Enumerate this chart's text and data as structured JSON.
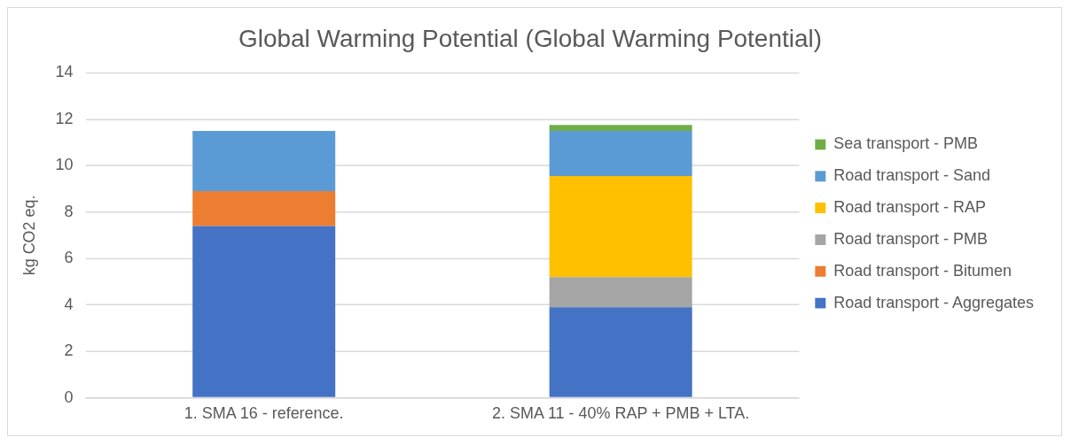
{
  "chart_data": {
    "type": "bar",
    "title": "Global Warming Potential (Global Warming Potential)",
    "ylabel": "kg CO2 eq.",
    "categories": [
      "1. SMA 16 - reference.",
      "2. SMA 11 - 40% RAP + PMB + LTA."
    ],
    "stacked": true,
    "ylim": [
      0,
      14
    ],
    "yticks": [
      0,
      2,
      4,
      6,
      8,
      10,
      12,
      14
    ],
    "grid": "y",
    "legend": "right",
    "series": [
      {
        "name": "Road transport - Aggregates",
        "color": "#4472c4",
        "values": [
          7.4,
          3.9
        ]
      },
      {
        "name": "Road transport - Bitumen",
        "color": "#ed7d31",
        "values": [
          1.5,
          null
        ]
      },
      {
        "name": "Road transport - PMB",
        "color": "#a5a5a5",
        "values": [
          null,
          1.3
        ]
      },
      {
        "name": "Road transport - RAP",
        "color": "#ffc000",
        "values": [
          null,
          4.35
        ]
      },
      {
        "name": "Road transport - Sand",
        "color": "#5b9bd5",
        "values": [
          2.6,
          1.95
        ]
      },
      {
        "name": "Sea transport - PMB",
        "color": "#70ad47",
        "values": [
          null,
          0.25
        ]
      }
    ]
  }
}
